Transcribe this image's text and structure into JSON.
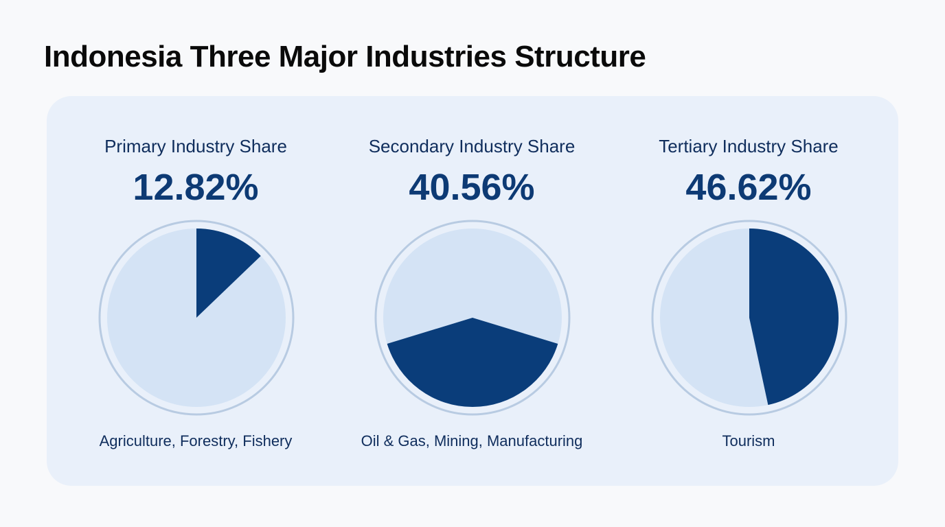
{
  "title": "Indonesia Three Major Industries Structure",
  "colors": {
    "slice": "#0a3d7a",
    "base": "#d4e3f5",
    "ring": "#b8cbe2",
    "card": "#e9f0fa"
  },
  "chart_data": {
    "type": "pie",
    "title": "Indonesia Three Major Industries Structure",
    "charts": [
      {
        "label": "Primary Industry Share",
        "value_text": "12.82%",
        "value": 12.82,
        "caption": "Agriculture, Forestry, Fishery"
      },
      {
        "label": "Secondary Industry Share",
        "value_text": "40.56%",
        "value": 40.56,
        "caption": "Oil & Gas, Mining, Manufacturing"
      },
      {
        "label": "Tertiary Industry Share",
        "value_text": "46.62%",
        "value": 46.62,
        "caption": "Tourism"
      }
    ]
  }
}
